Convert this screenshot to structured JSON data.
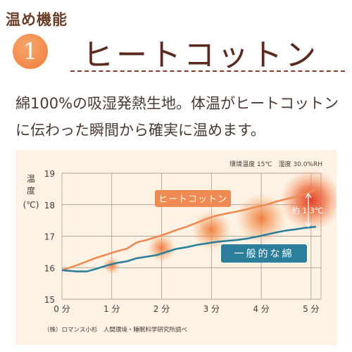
{
  "section_label": "温め機能",
  "badge_number": "1",
  "headline": "ヒートコットン",
  "description": "綿100%の吸湿発熱生地。体温がヒートコットンに伝わった瞬間から確実に温めます。",
  "chart_data": {
    "type": "line",
    "conditions": "環境温度 15℃　湿度 30.0%RH",
    "ylabel_line1": "温",
    "ylabel_line2": "度",
    "ylabel_unit": "(℃)",
    "x_ticks": [
      "0 分",
      "1 分",
      "2 分",
      "3 分",
      "4 分",
      "5 分"
    ],
    "y_ticks": [
      "15",
      "16",
      "17",
      "18",
      "19"
    ],
    "xlim": [
      0,
      5.2
    ],
    "ylim": [
      15,
      19
    ],
    "grid": true,
    "series": [
      {
        "name": "ヒートコットン",
        "color": "#ee8a52",
        "x": [
          0,
          0.15,
          0.3,
          0.5,
          0.7,
          0.9,
          1.1,
          1.3,
          1.5,
          1.7,
          1.9,
          2.1,
          2.3,
          2.5,
          2.7,
          2.9,
          3.1,
          3.3,
          3.5,
          3.7,
          3.9,
          4.1,
          4.3,
          4.5,
          4.7,
          4.9,
          5.1
        ],
        "y": [
          15.92,
          16.0,
          16.08,
          16.2,
          16.32,
          16.42,
          16.52,
          16.6,
          16.8,
          16.88,
          16.98,
          17.08,
          17.2,
          17.3,
          17.42,
          17.55,
          17.65,
          17.72,
          17.78,
          17.85,
          17.93,
          18.0,
          18.1,
          18.18,
          18.25,
          18.35,
          18.47
        ]
      },
      {
        "name": "一般的な綿",
        "color": "#2b7f9a",
        "x": [
          0,
          0.15,
          0.3,
          0.5,
          0.7,
          0.9,
          1.1,
          1.3,
          1.5,
          1.7,
          1.9,
          2.1,
          2.3,
          2.5,
          2.7,
          2.9,
          3.1,
          3.3,
          3.5,
          3.7,
          3.9,
          4.1,
          4.3,
          4.5,
          4.7,
          4.9,
          5.1
        ],
        "y": [
          15.92,
          15.9,
          15.88,
          15.88,
          15.97,
          16.07,
          16.15,
          16.2,
          16.3,
          16.35,
          16.4,
          16.5,
          16.6,
          16.65,
          16.72,
          16.77,
          16.82,
          16.85,
          16.88,
          16.92,
          16.98,
          17.05,
          17.12,
          17.18,
          17.22,
          17.27,
          17.3
        ]
      }
    ],
    "glow_points_x": [
      1.0,
      2.0,
      3.0,
      4.0,
      5.0
    ],
    "annotation": "約 1.3℃",
    "source": "（株）ロマンス小杉　人間環境・睡眠科学研究所調べ"
  }
}
